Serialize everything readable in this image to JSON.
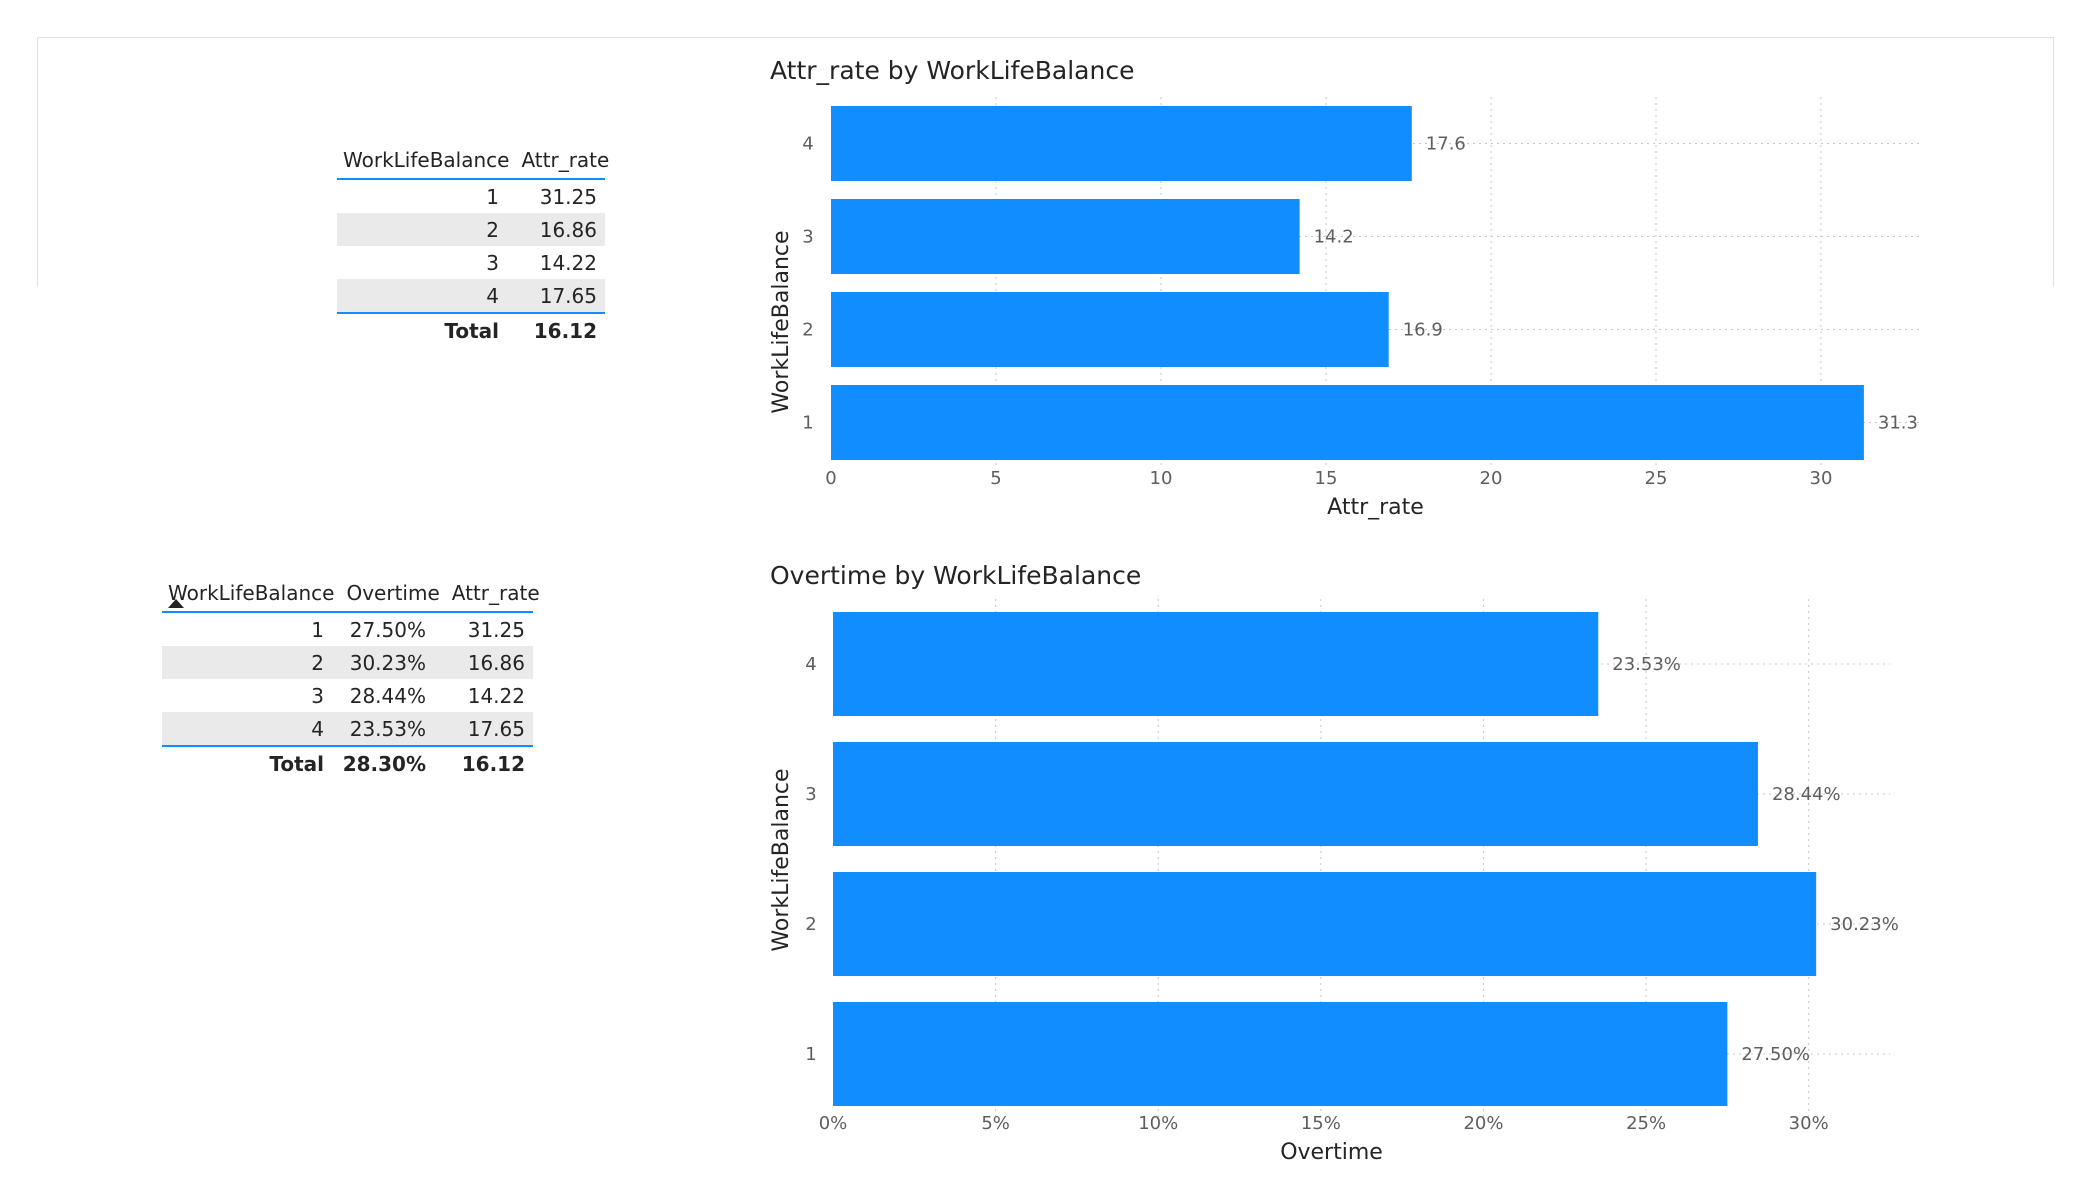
{
  "table1": {
    "headers": [
      "WorkLifeBalance",
      "Attr_rate"
    ],
    "rows": [
      [
        "1",
        "31.25"
      ],
      [
        "2",
        "16.86"
      ],
      [
        "3",
        "14.22"
      ],
      [
        "4",
        "17.65"
      ]
    ],
    "total": [
      "Total",
      "16.12"
    ]
  },
  "table2": {
    "headers": [
      "WorkLifeBalance",
      "Overtime",
      "Attr_rate"
    ],
    "rows": [
      [
        "1",
        "27.50%",
        "31.25"
      ],
      [
        "2",
        "30.23%",
        "16.86"
      ],
      [
        "3",
        "28.44%",
        "14.22"
      ],
      [
        "4",
        "23.53%",
        "17.65"
      ]
    ],
    "total": [
      "Total",
      "28.30%",
      "16.12"
    ]
  },
  "colors": {
    "bar": "#118dff",
    "grid": "#c8c8c8",
    "table_accent": "#118dff"
  },
  "chart_data": [
    {
      "type": "bar",
      "orientation": "horizontal",
      "title": "Attr_rate by WorkLifeBalance",
      "xlabel": "Attr_rate",
      "ylabel": "WorkLifeBalance",
      "categories": [
        "4",
        "3",
        "2",
        "1"
      ],
      "values": [
        17.6,
        14.2,
        16.9,
        31.3
      ],
      "data_labels": [
        "17.6",
        "14.2",
        "16.9",
        "31.3"
      ],
      "xlim": [
        0,
        33
      ],
      "xticks": [
        0,
        5,
        10,
        15,
        20,
        25,
        30
      ],
      "xtick_labels": [
        "0",
        "5",
        "10",
        "15",
        "20",
        "25",
        "30"
      ],
      "grid": true
    },
    {
      "type": "bar",
      "orientation": "horizontal",
      "title": "Overtime by WorkLifeBalance",
      "xlabel": "Overtime",
      "ylabel": "WorkLifeBalance",
      "categories": [
        "4",
        "3",
        "2",
        "1"
      ],
      "values": [
        23.53,
        28.44,
        30.23,
        27.5
      ],
      "data_labels": [
        "23.53%",
        "28.44%",
        "30.23%",
        "27.50%"
      ],
      "xlim": [
        0,
        32.5
      ],
      "xticks": [
        0,
        5,
        10,
        15,
        20,
        25,
        30
      ],
      "xtick_labels": [
        "0%",
        "5%",
        "10%",
        "15%",
        "20%",
        "25%",
        "30%"
      ],
      "grid": true
    }
  ]
}
